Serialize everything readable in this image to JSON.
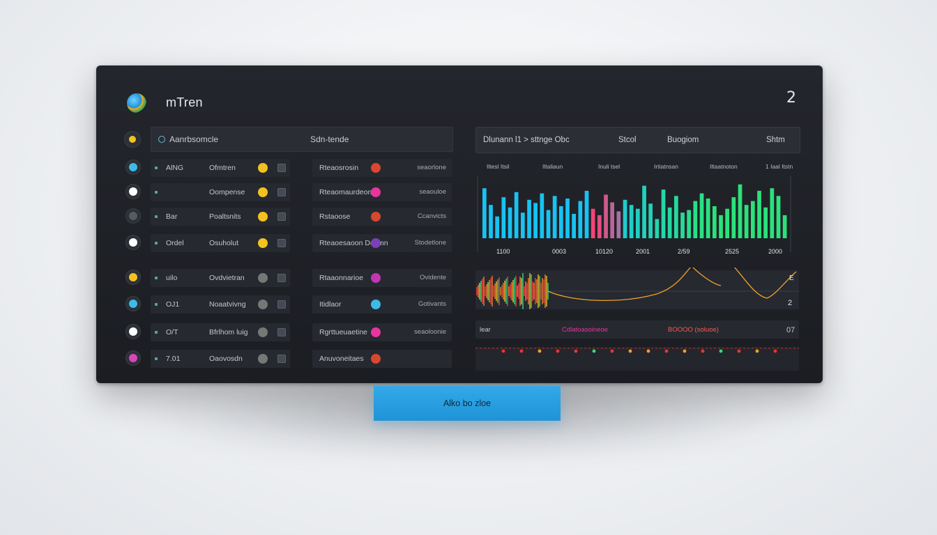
{
  "app": {
    "title": "mTren",
    "corner_icon": "2"
  },
  "search": {
    "value": "Aanrbsomcle",
    "center_text": "Sdn-tende"
  },
  "left_rows": [
    {
      "c1_t1": "AlNG",
      "c1_t2": "Ofmtren",
      "c2_t1": "Rteaosrosin",
      "c2_tail": "seaorlone",
      "avatar_color": "#3cbbe8",
      "icon1_color": "#f4c21e",
      "icon2_color": "#d9472e"
    },
    {
      "c1_t1": "",
      "c1_t2": "Oompense",
      "c2_t1": "Rteaomaurdeon",
      "c2_tail": "seaouloe",
      "avatar_color": "#ffffff",
      "icon1_color": "#f4c21e",
      "icon2_color": "#e8349c"
    },
    {
      "c1_t1": "Bar",
      "c1_t2": "Poaltsnits",
      "c2_t1": "Rstaoose",
      "c2_tail": "Ccanvicts",
      "avatar_color": "#555a63",
      "icon1_color": "#f4c21e",
      "icon2_color": "#d9472e"
    },
    {
      "c1_t1": "Ordel",
      "c1_t2": "Osuholut",
      "c2_t1": "Rteaoesaoon Desmn",
      "c2_tail": "Stodetlone",
      "avatar_color": "#ffffff",
      "icon1_color": "#f4c21e",
      "icon2_color": "#7b3fb8"
    },
    {
      "c1_t1": "uilo",
      "c1_t2": "Ovdvietran",
      "c2_t1": "Rtaaonnarioe",
      "c2_tail": "Ovidente",
      "avatar_color": "#f4c21e",
      "icon1_color": "#777",
      "icon2_color": "#c335b5"
    },
    {
      "c1_t1": "OJ1",
      "c1_t2": "Noaatvivng",
      "c2_t1": "Itidlaor",
      "c2_tail": "Gotivants",
      "avatar_color": "#3cbbe8",
      "icon1_color": "#777",
      "icon2_color": "#3cbbe8"
    },
    {
      "c1_t1": "O/T",
      "c1_t2": "Bfrlhom luig",
      "c2_t1": "Rgrttueuaetine",
      "c2_tail": "seaoloonie",
      "avatar_color": "#ffffff",
      "icon1_color": "#777",
      "icon2_color": "#e8349c"
    },
    {
      "c1_t1": "7.01",
      "c1_t2": "Oaovosdn",
      "c2_t1": "Anuvoneitaes",
      "c2_tail": "",
      "avatar_color": "#d946b8",
      "icon1_color": "#777",
      "icon2_color": "#d9472e"
    }
  ],
  "chart_header": {
    "left": "Dlunann l1 > sttnge Obc",
    "mid": "Stcol",
    "right": "Buogiom",
    "end": "Shtm"
  },
  "chart_data": {
    "type": "bar",
    "top_labels": [
      "Iltesl Itsil",
      "Iltaliaun",
      "Inuli tsel",
      "Irtiatnsan",
      "Iltaatnoton",
      "1 Iaal Itstn"
    ],
    "x_tick_labels": [
      "1100",
      "0003",
      "10120",
      "2001",
      "2/59",
      "2525",
      "2000"
    ],
    "values": [
      78,
      52,
      34,
      64,
      48,
      72,
      40,
      60,
      55,
      70,
      44,
      66,
      50,
      62,
      38,
      58,
      74,
      46,
      36,
      68,
      56,
      42,
      60,
      52,
      46,
      82,
      54,
      30,
      76,
      48,
      66,
      40,
      44,
      58,
      70,
      62,
      50,
      36,
      46,
      64,
      84,
      52,
      58,
      74,
      48,
      78,
      66,
      36
    ],
    "colors_start": "#18c2f2",
    "colors_mid": "#ff3d6f",
    "colors_end": "#2be27a"
  },
  "wave": {
    "right_label_top": "E",
    "right_label_bottom": "2"
  },
  "strip": {
    "left": "lear",
    "mid": "Cdlatoasoineoe",
    "mid2": "BOOOO (soluoe)",
    "right": "07"
  },
  "dots": {
    "colors": [
      "#e8372e",
      "#e8372e",
      "#f0a12a",
      "#e8372e",
      "#e8372e",
      "#2be27a",
      "#e8372e",
      "#f0a12a",
      "#f0a12a",
      "#e8372e",
      "#f0a12a",
      "#e8372e",
      "#2be27a",
      "#e8372e",
      "#f0a12a",
      "#e8372e"
    ]
  },
  "cta": {
    "label": "Alko  bo zloe"
  }
}
